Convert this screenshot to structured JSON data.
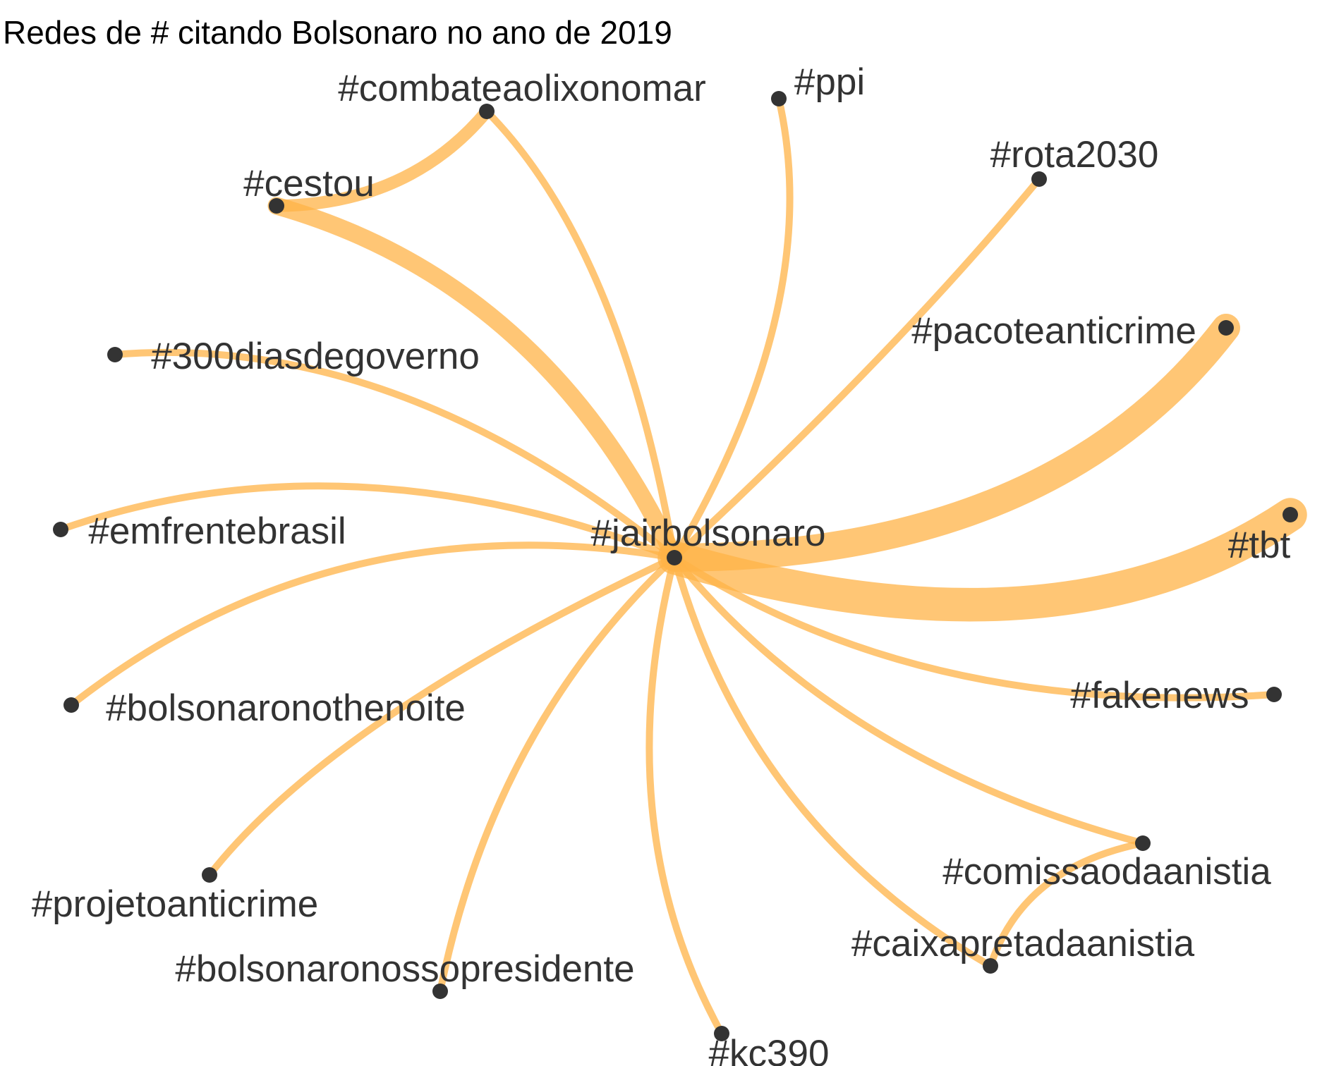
{
  "title": "Redes de # citando Bolsonaro no ano de 2019",
  "colors": {
    "edge": "#ffb347",
    "node": "#333333",
    "label": "#333333",
    "title": "#000000"
  },
  "chart_data": {
    "type": "network",
    "center": "#jairbolsonaro",
    "nodes": [
      "#jairbolsonaro",
      "#combateaolixonomar",
      "#ppi",
      "#rota2030",
      "#cestou",
      "#pacoteanticrime",
      "#300diasdegoverno",
      "#emfrentebrasil",
      "#tbt",
      "#bolsonaronothenoite",
      "#fakenews",
      "#comissaodaanistia",
      "#projetoanticrime",
      "#caixapretadaanistia",
      "#bolsonaronossopresidente",
      "#kc390"
    ],
    "edges": [
      {
        "source": "#jairbolsonaro",
        "target": "#combateaolixonomar",
        "weight": 1
      },
      {
        "source": "#jairbolsonaro",
        "target": "#ppi",
        "weight": 1
      },
      {
        "source": "#jairbolsonaro",
        "target": "#rota2030",
        "weight": 1
      },
      {
        "source": "#jairbolsonaro",
        "target": "#cestou",
        "weight": 3
      },
      {
        "source": "#jairbolsonaro",
        "target": "#pacoteanticrime",
        "weight": 5
      },
      {
        "source": "#jairbolsonaro",
        "target": "#300diasdegoverno",
        "weight": 1
      },
      {
        "source": "#jairbolsonaro",
        "target": "#emfrentebrasil",
        "weight": 1
      },
      {
        "source": "#jairbolsonaro",
        "target": "#tbt",
        "weight": 6
      },
      {
        "source": "#jairbolsonaro",
        "target": "#bolsonaronothenoite",
        "weight": 1
      },
      {
        "source": "#jairbolsonaro",
        "target": "#fakenews",
        "weight": 1
      },
      {
        "source": "#jairbolsonaro",
        "target": "#comissaodaanistia",
        "weight": 1
      },
      {
        "source": "#jairbolsonaro",
        "target": "#projetoanticrime",
        "weight": 1
      },
      {
        "source": "#jairbolsonaro",
        "target": "#caixapretadaanistia",
        "weight": 1
      },
      {
        "source": "#jairbolsonaro",
        "target": "#bolsonaronossopresidente",
        "weight": 1
      },
      {
        "source": "#jairbolsonaro",
        "target": "#kc390",
        "weight": 1
      },
      {
        "source": "#cestou",
        "target": "#combateaolixonomar",
        "weight": 2
      },
      {
        "source": "#comissaodaanistia",
        "target": "#caixapretadaanistia",
        "weight": 1
      }
    ]
  }
}
